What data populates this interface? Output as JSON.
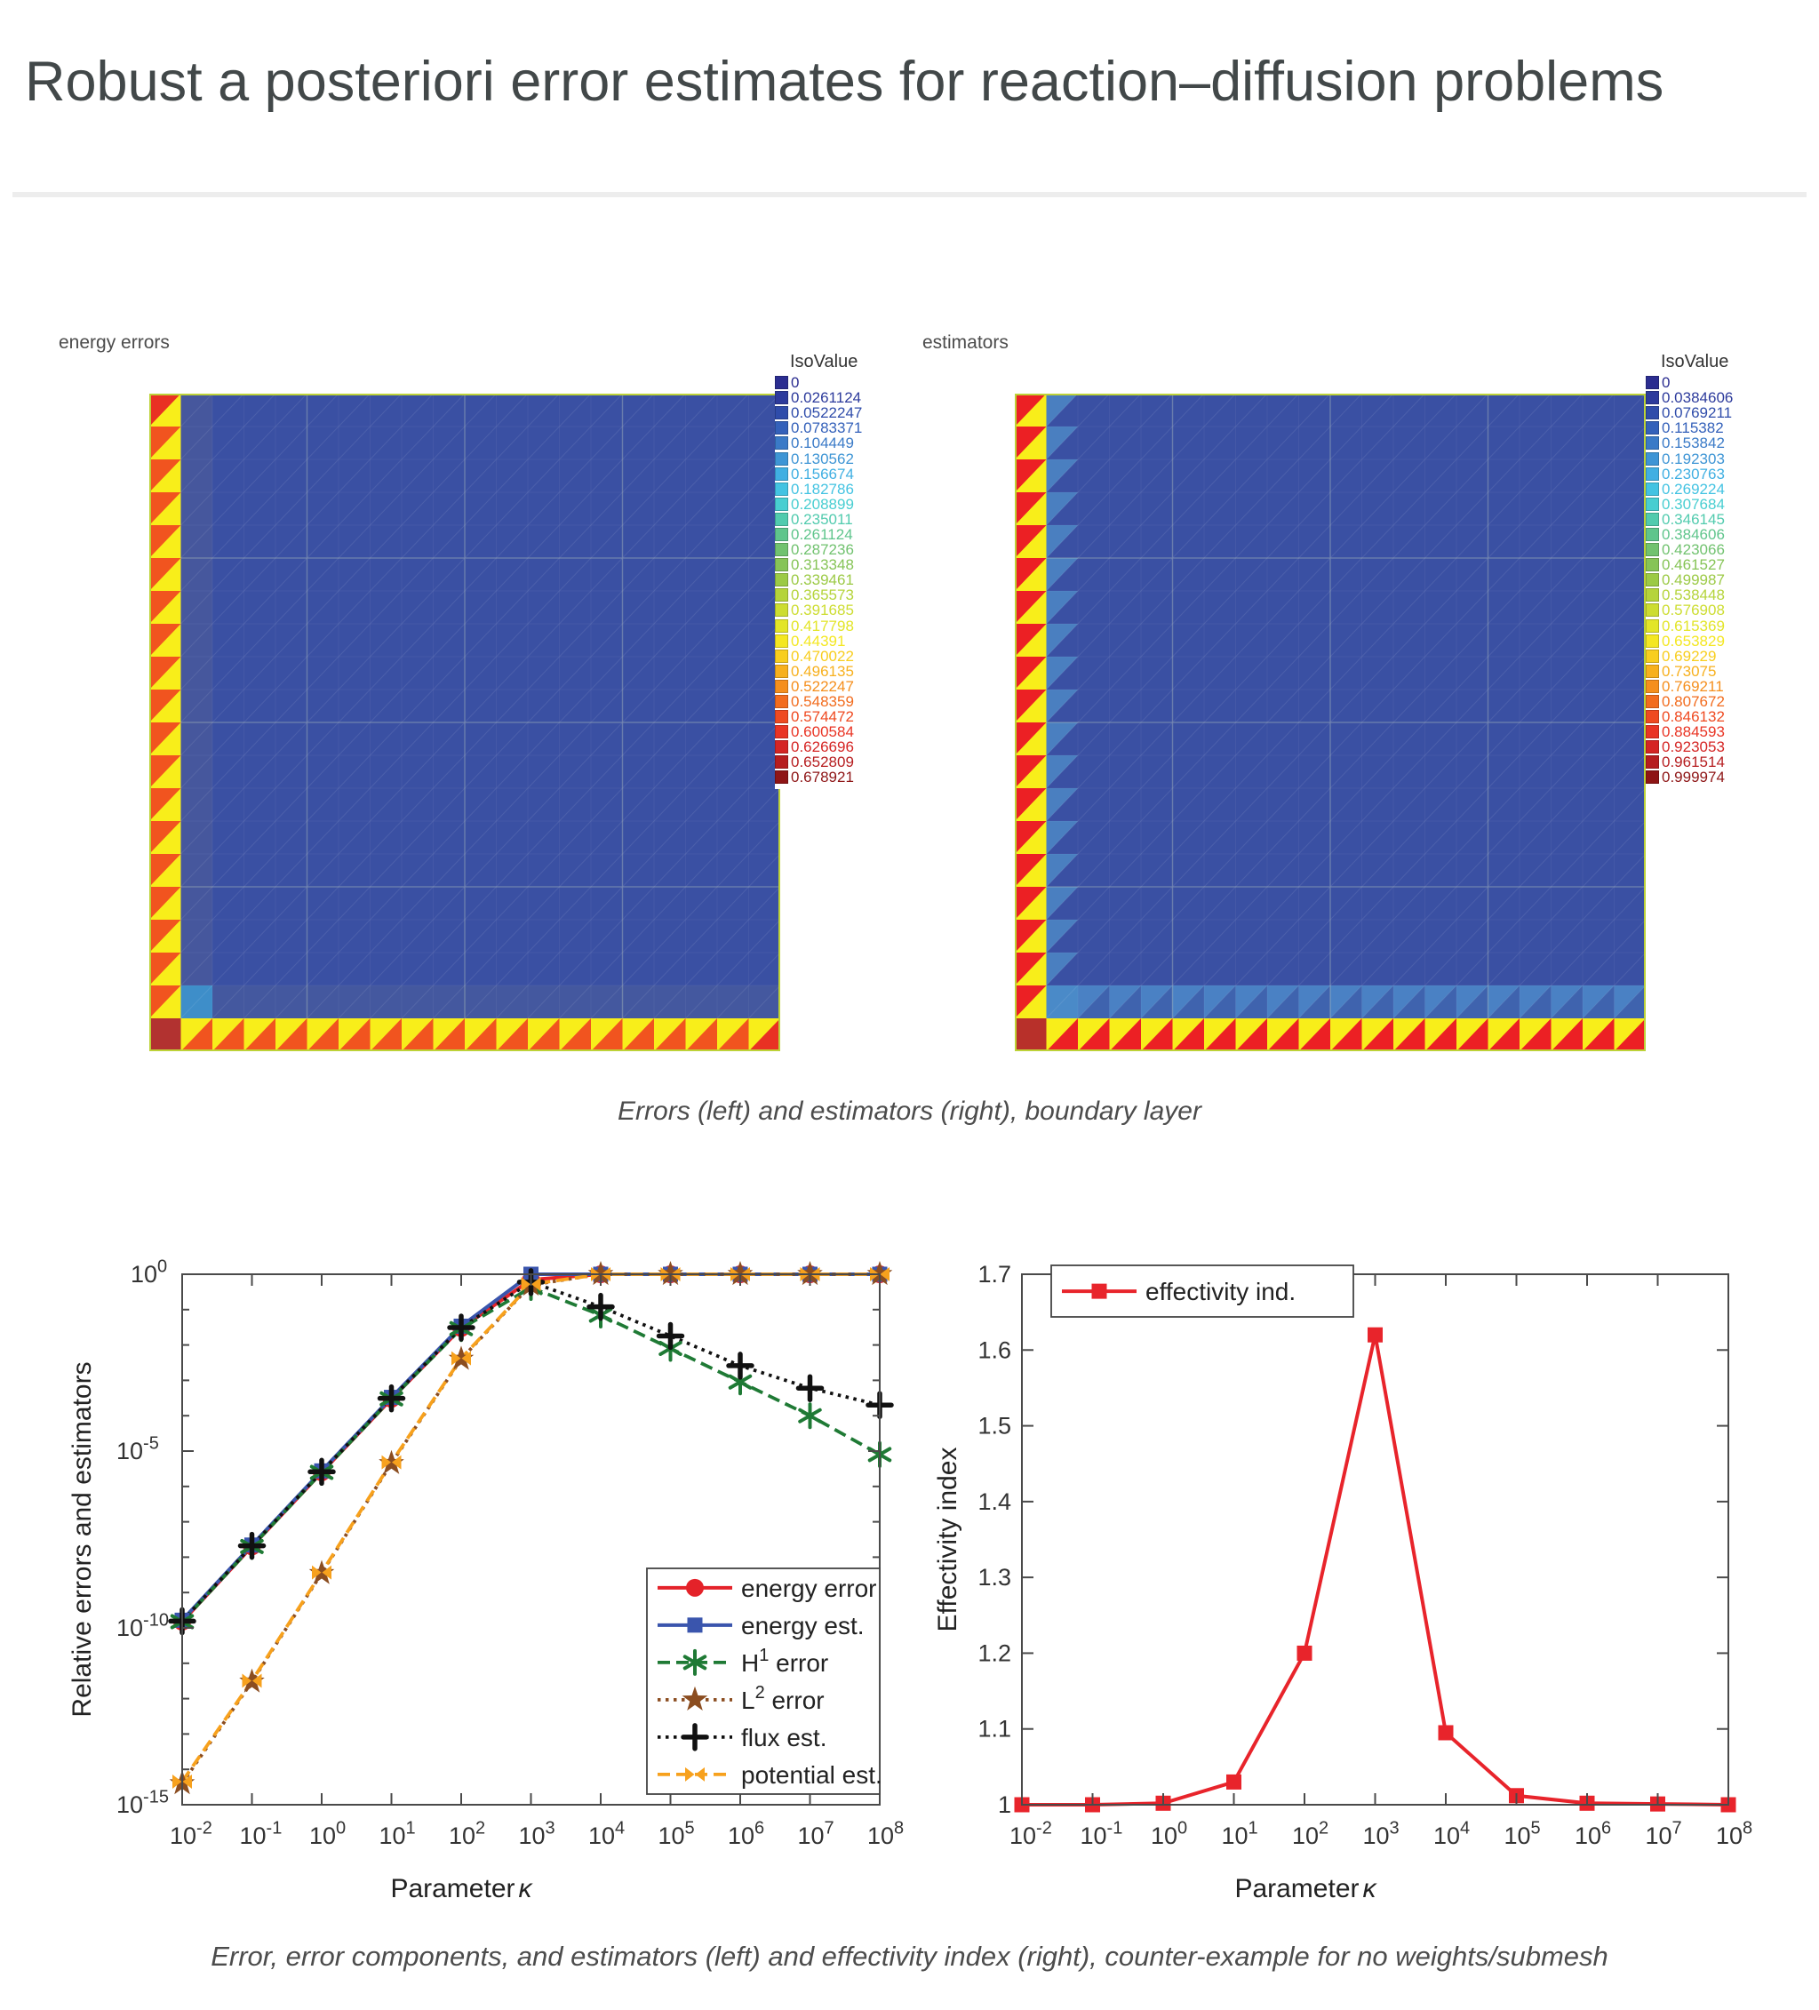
{
  "page": {
    "title": "Robust a posteriori error estimates for reaction–diffusion problems"
  },
  "captions": {
    "figure1": "Errors (left) and estimators (right), boundary layer",
    "figure2": "Error, error components, and estimators (left) and effectivity index (right), counter-example for no weights/submesh"
  },
  "mesh_figure": {
    "left": {
      "label": "energy errors",
      "legend_title": "IsoValue",
      "iso_values": [
        "0",
        "0.0261124",
        "0.0522247",
        "0.0783371",
        "0.104449",
        "0.130562",
        "0.156674",
        "0.182786",
        "0.208899",
        "0.235011",
        "0.261124",
        "0.287236",
        "0.313348",
        "0.339461",
        "0.365573",
        "0.391685",
        "0.417798",
        "0.44391",
        "0.470022",
        "0.496135",
        "0.522247",
        "0.548359",
        "0.574472",
        "0.600584",
        "0.626696",
        "0.652809",
        "0.678921"
      ]
    },
    "right": {
      "label": "estimators",
      "legend_title": "IsoValue",
      "iso_values": [
        "0",
        "0.0384606",
        "0.0769211",
        "0.115382",
        "0.153842",
        "0.192303",
        "0.230763",
        "0.269224",
        "0.307684",
        "0.346145",
        "0.384606",
        "0.423066",
        "0.461527",
        "0.499987",
        "0.538448",
        "0.576908",
        "0.615369",
        "0.653829",
        "0.69229",
        "0.73075",
        "0.769211",
        "0.807672",
        "0.846132",
        "0.884593",
        "0.923053",
        "0.961514",
        "0.999974"
      ]
    },
    "colormap_stops": [
      "#2b2d90",
      "#2d3f9f",
      "#3157b4",
      "#3a77c6",
      "#3f9bd8",
      "#41bce8",
      "#46cfd8",
      "#52cbaa",
      "#65c27f",
      "#7fc25c",
      "#9cca46",
      "#bcd738",
      "#dce32b",
      "#f4ea22",
      "#f9c91e",
      "#f6a01c",
      "#f3731e",
      "#ef4721",
      "#e62b26",
      "#c21f22",
      "#8e1516"
    ],
    "mesh_colors": {
      "interior": "#3a50a3",
      "col2_left": "#46579d",
      "row19_left": "#44589f",
      "cyan_cell_left": "#3e8ec9",
      "yellow": "#f8ee1a",
      "red_bright": "#e93123",
      "orange_red": "#f1541f",
      "corner_dark_red": "#b23230",
      "right_red": "#ec2024",
      "right_corner": "#b8302a",
      "right_col2_tri": "#4a7fc0",
      "right_row19_bg": "#3f63ae",
      "right_row19_tri": "#4a81c4",
      "right_cyan_cell": "#4a8ac8",
      "border": "#bdd238",
      "hatch": "rgba(255,255,255,0.09)",
      "grid_faint": "rgba(255,255,255,0.05)",
      "grid_pale": "rgba(215,230,190,0.25)"
    }
  },
  "chart_data": [
    {
      "type": "line",
      "x_scale": "log",
      "y_scale": "log",
      "xlabel": {
        "text": "Parameter ",
        "symbol": "κ"
      },
      "ylabel": "Relative errors and estimators",
      "x": [
        0.01,
        0.1,
        1,
        10,
        100,
        1000,
        10000,
        100000,
        1000000,
        10000000,
        100000000
      ],
      "x_tick_exponents": [
        -2,
        -1,
        0,
        1,
        2,
        3,
        4,
        5,
        6,
        7,
        8
      ],
      "ylim_exponents": [
        -15,
        0
      ],
      "y_tick_exponents_major": [
        0,
        -5,
        -10,
        -15
      ],
      "legend_position": "bottom-right",
      "series": [
        {
          "name": "energy error",
          "label_parts": [
            "energy error",
            "",
            ""
          ],
          "color": "#e42229",
          "line": "solid",
          "marker": "circle",
          "values": [
            1.5e-10,
            2e-08,
            2.5e-06,
            0.0003,
            0.03,
            0.7,
            1,
            1,
            1,
            1,
            1
          ]
        },
        {
          "name": "energy est.",
          "label_parts": [
            "energy est.",
            "",
            ""
          ],
          "color": "#3a55ad",
          "line": "solid",
          "marker": "square",
          "values": [
            1.65e-10,
            2.2e-08,
            2.75e-06,
            0.00033,
            0.034,
            1.0,
            1,
            1,
            1,
            1,
            1
          ]
        },
        {
          "name": "H¹ error",
          "label_parts": [
            "H",
            "1",
            " error"
          ],
          "color": "#1f7a35",
          "line": "dashed",
          "marker": "asterisk",
          "values": [
            1.5e-10,
            2e-08,
            2.5e-06,
            0.0003,
            0.029,
            0.42,
            0.07,
            0.008,
            0.0009,
            0.0001,
            8e-06
          ]
        },
        {
          "name": "L² error",
          "label_parts": [
            "L",
            "2",
            " error"
          ],
          "color": "#8b4d20",
          "line": "dotted",
          "marker": "star",
          "values": [
            4e-15,
            3e-12,
            3.5e-09,
            4.5e-06,
            0.004,
            0.5,
            1,
            1,
            1,
            1,
            1
          ]
        },
        {
          "name": "flux est.",
          "label_parts": [
            "flux est.",
            "",
            ""
          ],
          "color": "#111111",
          "line": "dotted",
          "marker": "plus",
          "values": [
            1.55e-10,
            2.1e-08,
            2.6e-06,
            0.00031,
            0.031,
            0.6,
            0.12,
            0.018,
            0.0026,
            0.0006,
            0.0002
          ]
        },
        {
          "name": "potential est.",
          "label_parts": [
            "potential est.",
            "",
            ""
          ],
          "color": "#f7a11d",
          "line": "dashed",
          "marker": "bowtie",
          "values": [
            4.5e-15,
            3.2e-12,
            3.7e-09,
            4.8e-06,
            0.0042,
            0.52,
            1,
            1,
            1,
            1,
            1
          ]
        }
      ]
    },
    {
      "type": "line",
      "x_scale": "log",
      "y_scale": "linear",
      "xlabel": {
        "text": "Parameter ",
        "symbol": "κ"
      },
      "ylabel": "Effectivity index",
      "x": [
        0.01,
        0.1,
        1,
        10,
        100,
        1000,
        10000,
        100000,
        1000000,
        10000000,
        100000000
      ],
      "x_tick_exponents": [
        -2,
        -1,
        0,
        1,
        2,
        3,
        4,
        5,
        6,
        7,
        8
      ],
      "ylim": [
        1,
        1.7
      ],
      "y_ticks": [
        1,
        1.1,
        1.2,
        1.3,
        1.4,
        1.5,
        1.6,
        1.7
      ],
      "y_tick_labels": [
        "1",
        "1.1",
        "1.2",
        "1.3",
        "1.4",
        "1.5",
        "1.6",
        "1.7"
      ],
      "legend_position": "top-left",
      "series": [
        {
          "name": "effectivity ind.",
          "label_parts": [
            "effectivity ind.",
            "",
            ""
          ],
          "color": "#e8242b",
          "line": "solid",
          "marker": "square",
          "values": [
            1,
            1,
            1.002,
            1.03,
            1.2,
            1.62,
            1.095,
            1.012,
            1.002,
            1.001,
            1
          ]
        }
      ]
    }
  ]
}
